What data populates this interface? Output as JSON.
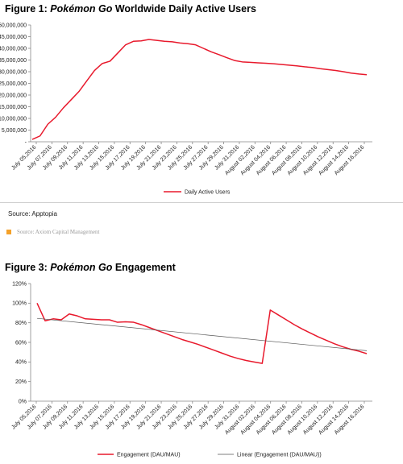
{
  "figure1": {
    "title_prefix": "Figure 1: ",
    "title_em": "Pokémon Go",
    "title_suffix": " Worldwide Daily Active Users",
    "source": "Source:  Apptopia"
  },
  "footer_source": "Source: Axiom Capital Management",
  "figure3": {
    "title_prefix": "Figure 3: ",
    "title_em": "Pokémon Go",
    "title_suffix": " Engagement"
  },
  "colors": {
    "series": "#e8192c",
    "trend": "#555555",
    "axis": "#888888",
    "bullet": "#f4a12a"
  },
  "chart_data": [
    {
      "type": "line",
      "x_tick_labels": [
        "July 05,2016",
        "July 07,2016",
        "July 09,2016",
        "July 11,2016",
        "July 13,2016",
        "July 15,2016",
        "July 17,2016",
        "July 19,2016",
        "July 21,2016",
        "July 23,2016",
        "July 25,2016",
        "July 27,2016",
        "July 29,2016",
        "July 31,2016",
        "August 02,2016",
        "August 04,2016",
        "August 06,2016",
        "August 08,2016",
        "August 10,2016",
        "August 12,2016",
        "August 14,2016",
        "August 16,2016"
      ],
      "ylim": [
        0,
        50000000
      ],
      "y_ticks": [
        0,
        5000000,
        10000000,
        15000000,
        20000000,
        25000000,
        30000000,
        35000000,
        40000000,
        45000000,
        50000000
      ],
      "y_tick_labels": [
        "-",
        "5,000,000",
        "10,000,000",
        "15,000,000",
        "20,000,000",
        "25,000,000",
        "30,000,000",
        "35,000,000",
        "40,000,000",
        "45,000,000",
        "50,000,000"
      ],
      "grid": false,
      "legend_position": "bottom",
      "series": [
        {
          "name": "Daily Active Users",
          "values": [
            1000000,
            2500000,
            7500000,
            10500000,
            14500000,
            18000000,
            21500000,
            26000000,
            30500000,
            33500000,
            34500000,
            38000000,
            41500000,
            43000000,
            43200000,
            43800000,
            43400000,
            43000000,
            42800000,
            42300000,
            42000000,
            41500000,
            40000000,
            38500000,
            37300000,
            36000000,
            34800000,
            34200000,
            34000000,
            33800000,
            33600000,
            33400000,
            33100000,
            32800000,
            32500000,
            32100000,
            31800000,
            31300000,
            30900000,
            30500000,
            30000000,
            29400000,
            29000000,
            28700000
          ]
        }
      ]
    },
    {
      "type": "line",
      "x_tick_labels": [
        "July 05,2016",
        "July 07,2016",
        "July 09,2016",
        "July 11,2016",
        "July 13,2016",
        "July 15,2016",
        "July 17,2016",
        "July 19,2016",
        "July 21,2016",
        "July 23,2016",
        "July 25,2016",
        "July 27,2016",
        "July 29,2016",
        "July 31,2016",
        "August 02,2016",
        "August 04,2016",
        "August 06,2016",
        "August 08,2016",
        "August 10,2016",
        "August 12,2016",
        "August 14,2016",
        "August 16,2016"
      ],
      "ylim": [
        0,
        120
      ],
      "y_ticks": [
        0,
        20,
        40,
        60,
        80,
        100,
        120
      ],
      "y_tick_labels": [
        "0%",
        "20%",
        "40%",
        "60%",
        "80%",
        "100%",
        "120%"
      ],
      "grid": false,
      "legend_position": "bottom",
      "series": [
        {
          "name": "Engagement (DAU/MAU)",
          "values": [
            100,
            82,
            84,
            83,
            89,
            87,
            84,
            83.5,
            83,
            83,
            80.5,
            81,
            80.5,
            78,
            75,
            72,
            69,
            66,
            63,
            60.5,
            58,
            55,
            52,
            49,
            46,
            43.5,
            41.5,
            40,
            38.5,
            93,
            88,
            83,
            78,
            73.5,
            69.5,
            65.5,
            62,
            58.5,
            55.5,
            53,
            51,
            48.5
          ]
        },
        {
          "name": "Linear (Engagement (DAU/MAU))",
          "values_endpoints": [
            84.5,
            51.5
          ]
        }
      ]
    }
  ]
}
